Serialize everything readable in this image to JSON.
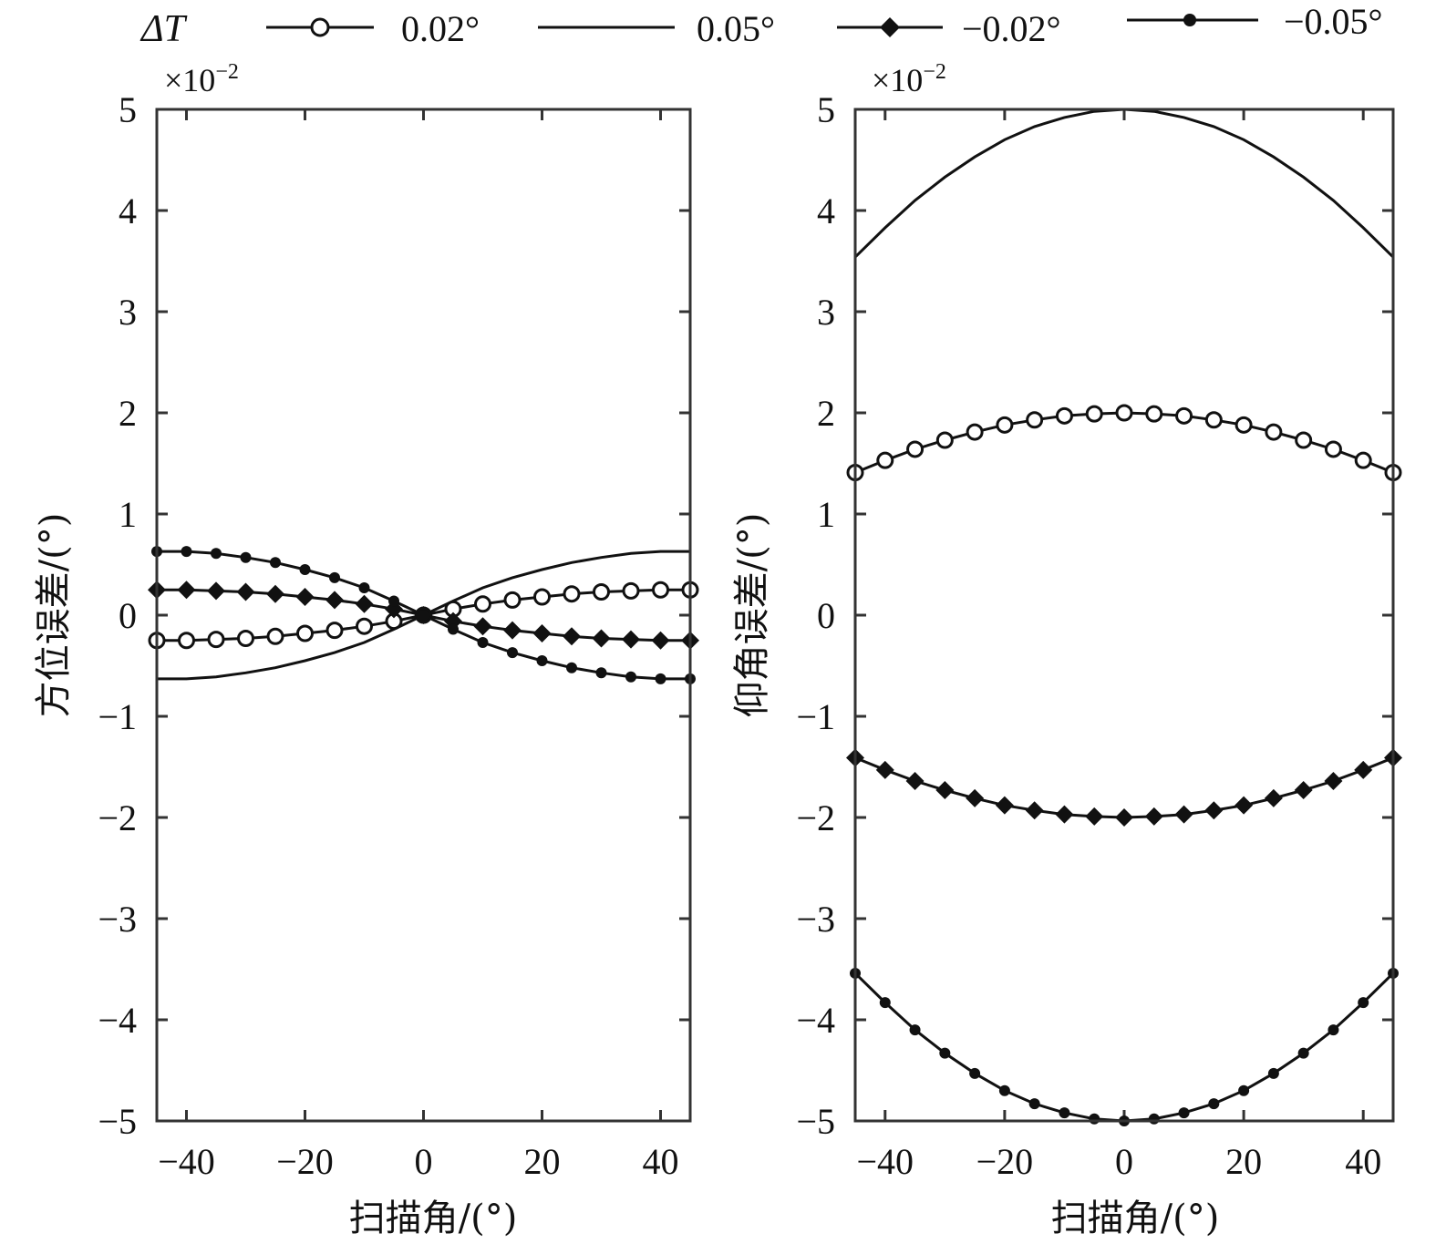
{
  "legend": {
    "title": "ΔT",
    "entries": [
      {
        "label": "0.02°",
        "marker": "open-circle"
      },
      {
        "label": "0.05°",
        "marker": "none"
      },
      {
        "label": "−0.02°",
        "marker": "filled-diamond"
      },
      {
        "label": "−0.05°",
        "marker": "filled-dot"
      }
    ]
  },
  "chart_data": [
    {
      "type": "line",
      "xlabel": "扫描角/(°)",
      "ylabel": "方位误差/(°)",
      "y_multiplier": "×10",
      "y_multiplier_exp": "−2",
      "xlim": [
        -45,
        45
      ],
      "ylim": [
        -5,
        5
      ],
      "xticks": [
        -40,
        -20,
        0,
        20,
        40
      ],
      "xtick_labels": [
        "−40",
        "−20",
        "0",
        "20",
        "40"
      ],
      "yticks": [
        5,
        4,
        3,
        2,
        1,
        0,
        -1,
        -2,
        -3,
        -4,
        -5
      ],
      "ytick_labels": [
        "5",
        "4",
        "3",
        "2",
        "1",
        "0",
        "−1",
        "−2",
        "−3",
        "−4",
        "−5"
      ],
      "grid": false,
      "x": [
        -45,
        -40,
        -35,
        -30,
        -25,
        -20,
        -15,
        -10,
        -5,
        0,
        5,
        10,
        15,
        20,
        25,
        30,
        35,
        40,
        45
      ],
      "series": [
        {
          "marker": "open-circle",
          "values": [
            -0.25,
            -0.25,
            -0.24,
            -0.23,
            -0.21,
            -0.18,
            -0.15,
            -0.11,
            -0.06,
            0,
            0.06,
            0.11,
            0.15,
            0.18,
            0.21,
            0.23,
            0.24,
            0.25,
            0.25
          ]
        },
        {
          "marker": "none",
          "values": [
            -0.63,
            -0.63,
            -0.61,
            -0.57,
            -0.52,
            -0.45,
            -0.37,
            -0.27,
            -0.14,
            0,
            0.14,
            0.27,
            0.37,
            0.45,
            0.52,
            0.57,
            0.61,
            0.63,
            0.63
          ]
        },
        {
          "marker": "filled-diamond",
          "values": [
            0.25,
            0.25,
            0.24,
            0.23,
            0.21,
            0.18,
            0.15,
            0.11,
            0.06,
            0,
            -0.06,
            -0.11,
            -0.15,
            -0.18,
            -0.21,
            -0.23,
            -0.24,
            -0.25,
            -0.25
          ]
        },
        {
          "marker": "filled-dot",
          "values": [
            0.63,
            0.63,
            0.61,
            0.57,
            0.52,
            0.45,
            0.37,
            0.27,
            0.14,
            0,
            -0.14,
            -0.27,
            -0.37,
            -0.45,
            -0.52,
            -0.57,
            -0.61,
            -0.63,
            -0.63
          ]
        }
      ]
    },
    {
      "type": "line",
      "xlabel": "扫描角/(°)",
      "ylabel": "仰角误差/(°)",
      "y_multiplier": "×10",
      "y_multiplier_exp": "−2",
      "xlim": [
        -45,
        45
      ],
      "ylim": [
        -5,
        5
      ],
      "xticks": [
        -40,
        -20,
        0,
        20,
        40
      ],
      "xtick_labels": [
        "−40",
        "−20",
        "0",
        "20",
        "40"
      ],
      "yticks": [
        5,
        4,
        3,
        2,
        1,
        0,
        -1,
        -2,
        -3,
        -4,
        -5
      ],
      "ytick_labels": [
        "5",
        "4",
        "3",
        "2",
        "1",
        "0",
        "−1",
        "−2",
        "−3",
        "−4",
        "−5"
      ],
      "grid": false,
      "x": [
        -45,
        -40,
        -35,
        -30,
        -25,
        -20,
        -15,
        -10,
        -5,
        0,
        5,
        10,
        15,
        20,
        25,
        30,
        35,
        40,
        45
      ],
      "series": [
        {
          "marker": "open-circle",
          "values": [
            1.41,
            1.53,
            1.64,
            1.73,
            1.81,
            1.88,
            1.93,
            1.97,
            1.99,
            2.0,
            1.99,
            1.97,
            1.93,
            1.88,
            1.81,
            1.73,
            1.64,
            1.53,
            1.41
          ]
        },
        {
          "marker": "none",
          "values": [
            3.54,
            3.83,
            4.1,
            4.33,
            4.53,
            4.7,
            4.83,
            4.92,
            4.98,
            5.0,
            4.98,
            4.92,
            4.83,
            4.7,
            4.53,
            4.33,
            4.1,
            3.83,
            3.54
          ]
        },
        {
          "marker": "filled-diamond",
          "values": [
            -1.41,
            -1.53,
            -1.64,
            -1.73,
            -1.81,
            -1.88,
            -1.93,
            -1.97,
            -1.99,
            -2.0,
            -1.99,
            -1.97,
            -1.93,
            -1.88,
            -1.81,
            -1.73,
            -1.64,
            -1.53,
            -1.41
          ]
        },
        {
          "marker": "filled-dot",
          "values": [
            -3.54,
            -3.83,
            -4.1,
            -4.33,
            -4.53,
            -4.7,
            -4.83,
            -4.92,
            -4.98,
            -5.0,
            -4.98,
            -4.92,
            -4.83,
            -4.7,
            -4.53,
            -4.33,
            -4.1,
            -3.83,
            -3.54
          ]
        }
      ]
    }
  ]
}
